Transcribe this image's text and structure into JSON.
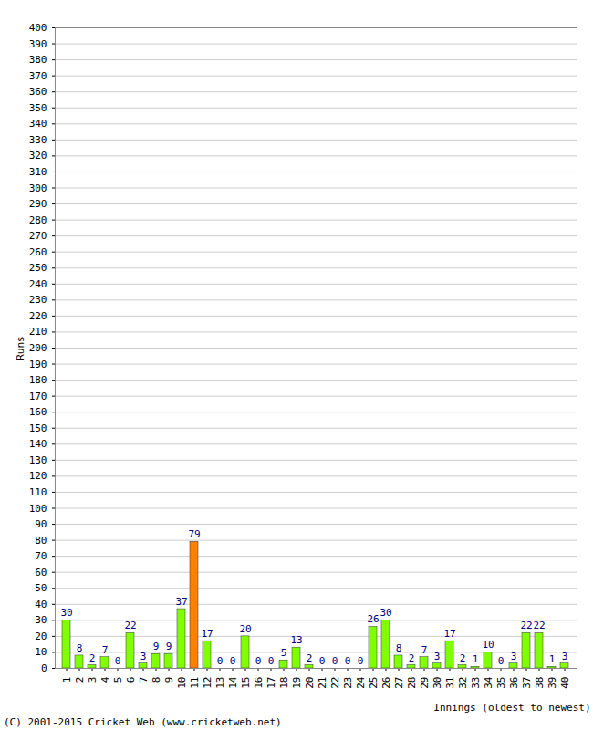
{
  "chart_data": {
    "type": "bar",
    "y_label": "Runs",
    "x_label": "Innings (oldest to newest)",
    "caption": "(C) 2001-2015 Cricket Web (www.cricketweb.net)",
    "categories": [
      "1",
      "2",
      "3",
      "4",
      "5",
      "6",
      "7",
      "8",
      "9",
      "10",
      "11",
      "12",
      "13",
      "14",
      "15",
      "16",
      "17",
      "18",
      "19",
      "20",
      "21",
      "22",
      "23",
      "24",
      "25",
      "26",
      "27",
      "28",
      "29",
      "30",
      "31",
      "32",
      "33",
      "34",
      "35",
      "36",
      "37",
      "38",
      "39",
      "40"
    ],
    "values": [
      30,
      8,
      2,
      7,
      0,
      22,
      3,
      9,
      9,
      37,
      79,
      17,
      0,
      0,
      20,
      0,
      0,
      5,
      13,
      2,
      0,
      0,
      0,
      0,
      26,
      30,
      8,
      2,
      7,
      3,
      17,
      2,
      1,
      10,
      0,
      3,
      22,
      22,
      1,
      3
    ],
    "colors": [
      "#80ff00",
      "#80ff00",
      "#80ff00",
      "#80ff00",
      "#80ff00",
      "#80ff00",
      "#80ff00",
      "#80ff00",
      "#80ff00",
      "#80ff00",
      "#ff8000",
      "#80ff00",
      "#80ff00",
      "#80ff00",
      "#80ff00",
      "#80ff00",
      "#80ff00",
      "#80ff00",
      "#80ff00",
      "#80ff00",
      "#80ff00",
      "#80ff00",
      "#80ff00",
      "#80ff00",
      "#80ff00",
      "#80ff00",
      "#80ff00",
      "#80ff00",
      "#80ff00",
      "#80ff00",
      "#80ff00",
      "#80ff00",
      "#80ff00",
      "#80ff00",
      "#80ff00",
      "#80ff00",
      "#80ff00",
      "#80ff00",
      "#80ff00",
      "#80ff00"
    ],
    "ylim": [
      0,
      400
    ],
    "yticks": [
      0,
      10,
      20,
      30,
      40,
      50,
      60,
      70,
      80,
      90,
      100,
      110,
      120,
      130,
      140,
      150,
      160,
      170,
      180,
      190,
      200,
      210,
      220,
      230,
      240,
      250,
      260,
      270,
      280,
      290,
      300,
      310,
      320,
      330,
      340,
      350,
      360,
      370,
      380,
      390,
      400
    ],
    "grid": true,
    "data_labels": true
  }
}
